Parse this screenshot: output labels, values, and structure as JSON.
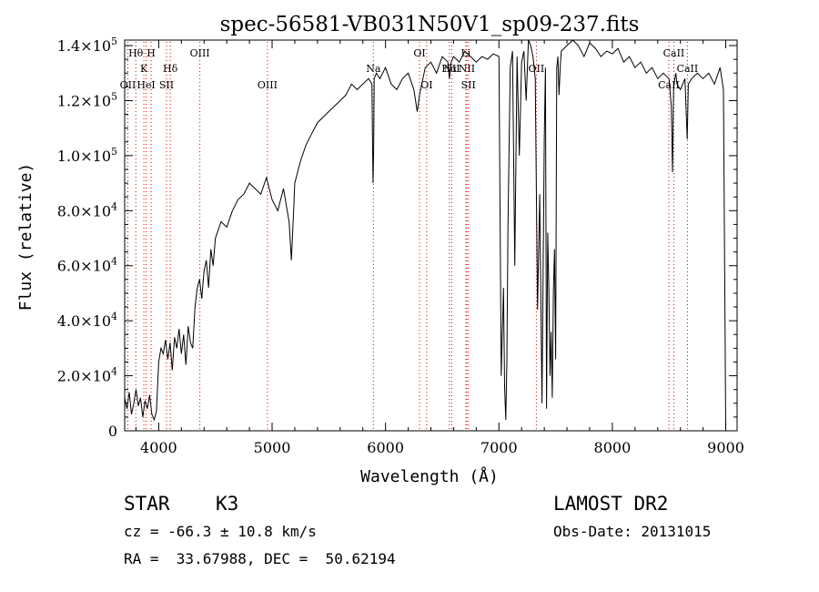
{
  "chart_data": {
    "type": "line",
    "title": "spec-56581-VB031N50V1_sp09-237.fits",
    "xlabel": "Wavelength (Å)",
    "ylabel": "Flux (relative)",
    "xlim": [
      3700,
      9100
    ],
    "ylim": [
      0,
      142000
    ],
    "grid": false,
    "x_ticks": [
      4000,
      5000,
      6000,
      7000,
      8000,
      9000
    ],
    "x_tick_labels": [
      "4000",
      "5000",
      "6000",
      "7000",
      "8000",
      "9000"
    ],
    "y_ticks": [
      0,
      20000,
      40000,
      60000,
      80000,
      100000,
      120000,
      140000
    ],
    "y_tick_labels": [
      {
        "mant": "0",
        "exp": ""
      },
      {
        "mant": "2.0×10",
        "exp": "4"
      },
      {
        "mant": "4.0×10",
        "exp": "4"
      },
      {
        "mant": "6.0×10",
        "exp": "4"
      },
      {
        "mant": "8.0×10",
        "exp": "4"
      },
      {
        "mant": "1.0×10",
        "exp": "5"
      },
      {
        "mant": "1.2×10",
        "exp": "5"
      },
      {
        "mant": "1.4×10",
        "exp": "5"
      }
    ],
    "series": [
      {
        "x": [
          3700,
          3720,
          3740,
          3760,
          3780,
          3800,
          3820,
          3840,
          3860,
          3880,
          3900,
          3920,
          3940,
          3960,
          3980,
          4000,
          4020,
          4040,
          4060,
          4080,
          4100,
          4120,
          4140,
          4160,
          4180,
          4200,
          4220,
          4240,
          4260,
          4280,
          4300,
          4320,
          4340,
          4360,
          4380,
          4400,
          4420,
          4440,
          4460,
          4480,
          4500,
          4550,
          4600,
          4650,
          4700,
          4750,
          4800,
          4850,
          4900,
          4950,
          5000,
          5050,
          5100,
          5150,
          5170,
          5190,
          5200,
          5250,
          5300,
          5350,
          5400,
          5450,
          5500,
          5550,
          5600,
          5650,
          5700,
          5750,
          5800,
          5850,
          5880,
          5890,
          5895,
          5900,
          5920,
          5950,
          6000,
          6050,
          6100,
          6150,
          6200,
          6250,
          6280,
          6300,
          6350,
          6400,
          6450,
          6500,
          6550,
          6563,
          6580,
          6600,
          6650,
          6700,
          6750,
          6800,
          6850,
          6900,
          6950,
          7000,
          7020,
          7040,
          7050,
          7060,
          7070,
          7080,
          7100,
          7120,
          7140,
          7160,
          7180,
          7200,
          7220,
          7240,
          7260,
          7280,
          7300,
          7320,
          7340,
          7360,
          7380,
          7400,
          7410,
          7420,
          7430,
          7440,
          7450,
          7460,
          7470,
          7480,
          7490,
          7500,
          7510,
          7520,
          7530,
          7540,
          7550,
          7600,
          7650,
          7700,
          7750,
          7800,
          7850,
          7900,
          7950,
          8000,
          8050,
          8100,
          8150,
          8200,
          8250,
          8300,
          8350,
          8400,
          8450,
          8500,
          8520,
          8530,
          8540,
          8550,
          8560,
          8570,
          8600,
          8640,
          8660,
          8670,
          8700,
          8750,
          8800,
          8850,
          8900,
          8950,
          8980,
          9000
        ],
        "y": [
          12000,
          8000,
          14000,
          6000,
          10000,
          15000,
          9000,
          12000,
          5000,
          11000,
          8000,
          13000,
          6000,
          4000,
          7000,
          25000,
          30000,
          28000,
          33000,
          26000,
          32000,
          22000,
          34000,
          30000,
          37000,
          28000,
          35000,
          24000,
          38000,
          32000,
          30000,
          45000,
          52000,
          55000,
          48000,
          58000,
          62000,
          52000,
          66000,
          60000,
          70000,
          76000,
          74000,
          80000,
          84000,
          86000,
          90000,
          88000,
          86000,
          92000,
          84000,
          80000,
          88000,
          76000,
          62000,
          80000,
          90000,
          98000,
          104000,
          108000,
          112000,
          114000,
          116000,
          118000,
          120000,
          122000,
          126000,
          124000,
          126000,
          128000,
          126000,
          90000,
          102000,
          128000,
          130000,
          128000,
          132000,
          126000,
          124000,
          128000,
          130000,
          124000,
          116000,
          122000,
          132000,
          134000,
          130000,
          136000,
          134000,
          128000,
          134000,
          136000,
          134000,
          138000,
          136000,
          134000,
          136000,
          135000,
          137000,
          136000,
          20000,
          52000,
          16000,
          4000,
          25000,
          74000,
          132000,
          138000,
          60000,
          136000,
          100000,
          134000,
          138000,
          120000,
          142000,
          140000,
          136000,
          128000,
          44000,
          86000,
          10000,
          106000,
          132000,
          8000,
          72000,
          52000,
          20000,
          36000,
          12000,
          50000,
          66000,
          26000,
          132000,
          136000,
          122000,
          132000,
          138000,
          140000,
          142000,
          140000,
          136000,
          141000,
          139000,
          136000,
          138000,
          137000,
          139000,
          134000,
          136000,
          132000,
          134000,
          130000,
          132000,
          128000,
          130000,
          128000,
          118000,
          94000,
          124000,
          128000,
          130000,
          126000,
          124000,
          128000,
          106000,
          126000,
          128000,
          130000,
          128000,
          130000,
          126000,
          132000,
          124000,
          1000
        ]
      }
    ],
    "line_annotations": [
      {
        "label": "OII",
        "x": 3728,
        "level": 3
      },
      {
        "label": "Hθ",
        "x": 3798,
        "level": 1
      },
      {
        "label": "H",
        "x": 3933,
        "level": 1
      },
      {
        "label": "K",
        "x": 3869,
        "level": 2
      },
      {
        "label": "HeI",
        "x": 3889,
        "level": 3
      },
      {
        "label": "SII",
        "x": 4069,
        "level": 3
      },
      {
        "label": "Hδ",
        "x": 4102,
        "level": 2
      },
      {
        "label": "OIII",
        "x": 4363,
        "level": 1
      },
      {
        "label": "OIII",
        "x": 4959,
        "level": 3
      },
      {
        "label": "Na",
        "x": 5893,
        "level": 2
      },
      {
        "label": "OI",
        "x": 6300,
        "level": 1
      },
      {
        "label": "OI",
        "x": 6363,
        "level": 3
      },
      {
        "label": "Li",
        "x": 6708,
        "level": 1
      },
      {
        "label": "NII",
        "x": 6584,
        "level": 2
      },
      {
        "label": "Hα",
        "x": 6563,
        "level": 2
      },
      {
        "label": "NII",
        "x": 6716,
        "level": 2
      },
      {
        "label": "SII",
        "x": 6731,
        "level": 3
      },
      {
        "label": "OII",
        "x": 7330,
        "level": 2
      },
      {
        "label": "CaII",
        "x": 8542,
        "level": 1
      },
      {
        "label": "CaII",
        "x": 8498,
        "level": 3
      },
      {
        "label": "CaII",
        "x": 8662,
        "level": 2
      }
    ],
    "dotted_line_color": "#e00000"
  },
  "info": {
    "class_label": "STAR",
    "subclass": "K3",
    "survey": "LAMOST DR2",
    "redshift": "cz = -66.3 ± 10.8 km/s",
    "obs_date": "Obs-Date: 20131015",
    "coords": "RA =  33.67988, DEC =  50.62194"
  }
}
